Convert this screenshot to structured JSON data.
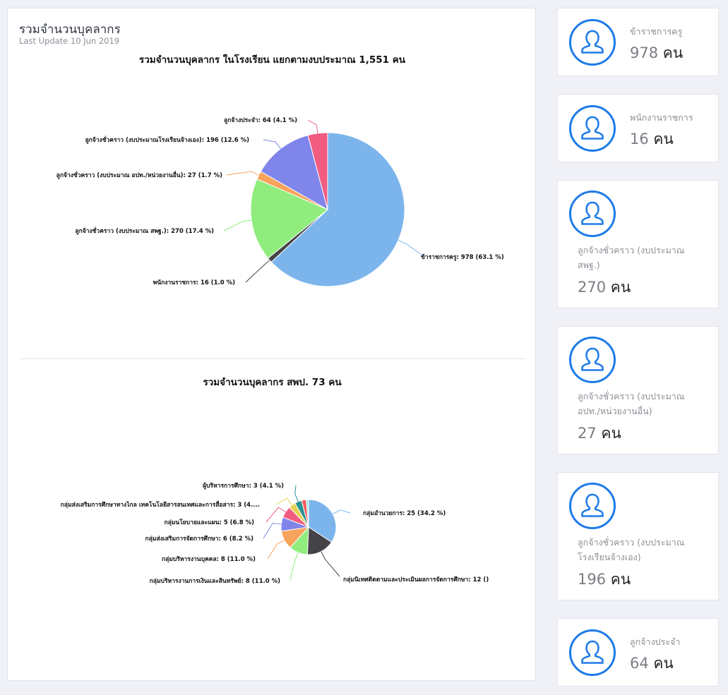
{
  "header": {
    "title": "รวมจำนวนบุคลากร",
    "subtitle": "Last Update 10 Jun 2019"
  },
  "chart_data": [
    {
      "type": "pie",
      "title": "รวมจำนวนบุคลากร ในโรงเรียน แยกตามงบประมาณ 1,551 คน",
      "slices": [
        {
          "label": "ข้าราชการครู: 978 (63.1 %)",
          "value": 978,
          "color": "#7cb5ec"
        },
        {
          "label": "พนักงานราชการ: 16 (1.0 %)",
          "value": 16,
          "color": "#434348"
        },
        {
          "label": "ลูกจ้างชั่วคราว (งบประมาณ สพฐ.): 270 (17.4 %)",
          "value": 270,
          "color": "#90ed7d"
        },
        {
          "label": "ลูกจ้างชั่วคราว (งบประมาณ อปท./หน่วยงานอื่น): 27 (1.7 %)",
          "value": 27,
          "color": "#f7a35c"
        },
        {
          "label": "ลูกจ้างชั่วคราว (งบประมาณโรงเรียนจ้างเอง): 196 (12.6 %)",
          "value": 196,
          "color": "#8085e9"
        },
        {
          "label": "ลูกจ้างประจำ: 64 (4.1 %)",
          "value": 64,
          "color": "#f15c80"
        }
      ]
    },
    {
      "type": "pie",
      "title": "รวมจำนวนบุคลากร สพป.  73 คน",
      "slices": [
        {
          "label": "กลุ่มอำนวยการ: 25 (34.2 %)",
          "value": 25,
          "color": "#7cb5ec"
        },
        {
          "label": "กลุ่มนิเทศติดตามและประเมินผลการจัดการศึกษา: 12 ()",
          "value": 12,
          "color": "#434348"
        },
        {
          "label": "กลุ่มบริหารงานการเงินและสินทรัพย์: 8 (11.0 %)",
          "value": 8,
          "color": "#90ed7d"
        },
        {
          "label": "กลุ่มบริหารงานบุคคล: 8 (11.0 %)",
          "value": 8,
          "color": "#f7a35c"
        },
        {
          "label": "กลุ่มส่งเสริมการจัดการศึกษา: 6 (8.2 %)",
          "value": 6,
          "color": "#8085e9"
        },
        {
          "label": "กลุ่มนโยบายและแผน: 5 (6.8 %)",
          "value": 5,
          "color": "#f15c80"
        },
        {
          "label": "กลุ่มส่งเสริมการศึกษาทางไกล เทคโนโลยีสารสนเทศและการสื่อสาร: 3 (4....",
          "value": 3,
          "color": "#e4d354"
        },
        {
          "label": "ผู้บริหารการศึกษา: 3 (4.1 %)",
          "value": 3,
          "color": "#2b908f"
        },
        {
          "label": "",
          "value": 2,
          "color": "#f45b5b"
        },
        {
          "label": "",
          "value": 1,
          "color": "#91e8e1"
        }
      ]
    }
  ],
  "stats": [
    {
      "label": "ข้าราชการครู",
      "value": "978",
      "unit": "คน"
    },
    {
      "label": "พนักงานราชการ",
      "value": "16",
      "unit": "คน"
    },
    {
      "label": "ลูกจ้างชั่วคราว (งบประมาณ สพฐ.)",
      "value": "270",
      "unit": "คน"
    },
    {
      "label": "ลูกจ้างชั่วคราว (งบประมาณ อปท./หน่วยงานอื่น)",
      "value": "27",
      "unit": "คน"
    },
    {
      "label": "ลูกจ้างชั่วคราว (งบประมาณ โรงเรียนจ้างเอง)",
      "value": "196",
      "unit": "คน"
    },
    {
      "label": "ลูกจ้างประจำ",
      "value": "64",
      "unit": "คน"
    }
  ],
  "icons": {
    "stat_icon": "user-icon",
    "accent": "#1e7be8"
  }
}
